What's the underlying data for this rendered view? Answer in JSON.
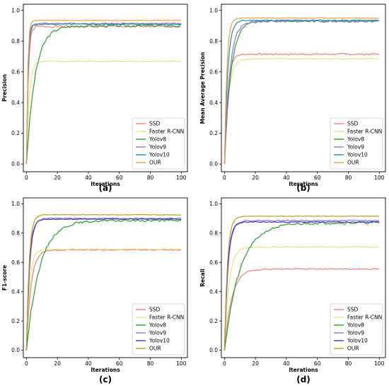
{
  "chart_data": [
    {
      "type": "line",
      "panel_label": "(a)",
      "xlabel": "Iterations",
      "ylabel": "Precision",
      "xlim": [
        -2,
        104
      ],
      "ylim": [
        -0.05,
        1.04
      ],
      "xticks": [
        0,
        20,
        40,
        60,
        80,
        100
      ],
      "yticks": [
        0.0,
        0.2,
        0.4,
        0.6,
        0.8,
        1.0
      ],
      "legend_position": "lower right",
      "series": [
        {
          "name": "SSD",
          "color": "#f08080",
          "curve": {
            "start": 0.0,
            "plateau": 0.895,
            "rate": 0.9,
            "noise": 0.01,
            "seed": 1
          }
        },
        {
          "name": "Faster R-CNN",
          "color": "#e3e389",
          "curve": {
            "start": 0.0,
            "plateau": 0.668,
            "rate": 0.6,
            "noise": 0.006,
            "seed": 2
          }
        },
        {
          "name": "Yolov8",
          "color": "#2e9e2e",
          "curve": {
            "start": 0.0,
            "plateau": 0.9,
            "rate": 0.18,
            "noise": 0.015,
            "seed": 3
          }
        },
        {
          "name": "Yolov9",
          "color": "#9370db",
          "curve": {
            "start": 0.0,
            "plateau": 0.915,
            "rate": 1.0,
            "noise": 0.006,
            "seed": 4
          }
        },
        {
          "name": "Yolov10",
          "color": "#1f8fa8",
          "curve": {
            "start": 0.0,
            "plateau": 0.91,
            "rate": 1.2,
            "noise": 0.005,
            "seed": 5
          }
        },
        {
          "name": "OUR",
          "color": "#f0a040",
          "curve": {
            "start": 0.0,
            "plateau": 0.935,
            "rate": 1.3,
            "noise": 0.003,
            "seed": 6
          }
        }
      ]
    },
    {
      "type": "line",
      "panel_label": "(b)",
      "xlabel": "Iterations",
      "ylabel": "Mean Average Precision",
      "xlim": [
        -2,
        104
      ],
      "ylim": [
        -0.05,
        1.04
      ],
      "xticks": [
        0,
        20,
        40,
        60,
        80,
        100
      ],
      "yticks": [
        0.0,
        0.2,
        0.4,
        0.6,
        0.8,
        1.0
      ],
      "legend_position": "lower right",
      "series": [
        {
          "name": "SSD",
          "color": "#f08080",
          "curve": {
            "start": 0.0,
            "plateau": 0.715,
            "rate": 0.5,
            "noise": 0.008,
            "seed": 7
          }
        },
        {
          "name": "Faster R-CNN",
          "color": "#e3e389",
          "curve": {
            "start": 0.0,
            "plateau": 0.685,
            "rate": 0.4,
            "noise": 0.005,
            "seed": 8
          }
        },
        {
          "name": "Yolov8",
          "color": "#2e9e2e",
          "curve": {
            "start": 0.0,
            "plateau": 0.93,
            "rate": 0.25,
            "noise": 0.012,
            "seed": 9
          }
        },
        {
          "name": "Yolov9",
          "color": "#9370db",
          "curve": {
            "start": 0.0,
            "plateau": 0.93,
            "rate": 0.3,
            "noise": 0.01,
            "seed": 10
          }
        },
        {
          "name": "Yolov10",
          "color": "#1f8fa8",
          "curve": {
            "start": 0.0,
            "plateau": 0.935,
            "rate": 0.5,
            "noise": 0.006,
            "seed": 11
          }
        },
        {
          "name": "OUR",
          "color": "#f0a040",
          "curve": {
            "start": 0.0,
            "plateau": 0.95,
            "rate": 0.7,
            "noise": 0.003,
            "seed": 12
          }
        }
      ]
    },
    {
      "type": "line",
      "panel_label": "(c)",
      "xlabel": "Iterations",
      "ylabel": "F1-score",
      "xlim": [
        -2,
        104
      ],
      "ylim": [
        -0.05,
        1.04
      ],
      "xticks": [
        0,
        20,
        40,
        60,
        80,
        100
      ],
      "yticks": [
        0.0,
        0.2,
        0.4,
        0.6,
        0.8,
        1.0
      ],
      "legend_position": "lower right",
      "series": [
        {
          "name": "SSD",
          "color": "#f08080",
          "curve": {
            "start": 0.0,
            "plateau": 0.685,
            "rate": 0.35,
            "noise": 0.006,
            "seed": 13
          }
        },
        {
          "name": "Faster R-CNN",
          "color": "#e3e389",
          "curve": {
            "start": 0.0,
            "plateau": 0.69,
            "rate": 0.5,
            "noise": 0.005,
            "seed": 14
          }
        },
        {
          "name": "Yolov8",
          "color": "#2e9e2e",
          "curve": {
            "start": 0.0,
            "plateau": 0.885,
            "rate": 0.12,
            "noise": 0.012,
            "seed": 15
          }
        },
        {
          "name": "Yolov9",
          "color": "#9370db",
          "curve": {
            "start": 0.0,
            "plateau": 0.9,
            "rate": 0.5,
            "noise": 0.006,
            "seed": 16
          }
        },
        {
          "name": "Yolov10",
          "color": "#3a3ab8",
          "curve": {
            "start": 0.0,
            "plateau": 0.895,
            "rate": 0.55,
            "noise": 0.005,
            "seed": 17
          }
        },
        {
          "name": "OUR",
          "color": "#b8a020",
          "curve": {
            "start": 0.0,
            "plateau": 0.925,
            "rate": 0.6,
            "noise": 0.003,
            "seed": 18
          }
        }
      ]
    },
    {
      "type": "line",
      "panel_label": "(d)",
      "xlabel": "Iterations",
      "ylabel": "Recall",
      "xlim": [
        -2,
        104
      ],
      "ylim": [
        -0.05,
        1.04
      ],
      "xticks": [
        0,
        20,
        40,
        60,
        80,
        100
      ],
      "yticks": [
        0.0,
        0.2,
        0.4,
        0.6,
        0.8,
        1.0
      ],
      "legend_position": "lower right",
      "series": [
        {
          "name": "SSD",
          "color": "#f08080",
          "curve": {
            "start": 0.0,
            "plateau": 0.555,
            "rate": 0.22,
            "noise": 0.006,
            "seed": 19
          }
        },
        {
          "name": "Faster R-CNN",
          "color": "#e3e389",
          "curve": {
            "start": 0.0,
            "plateau": 0.705,
            "rate": 0.35,
            "noise": 0.005,
            "seed": 20
          }
        },
        {
          "name": "Yolov8",
          "color": "#2e9e2e",
          "curve": {
            "start": 0.0,
            "plateau": 0.87,
            "rate": 0.1,
            "noise": 0.013,
            "seed": 21
          }
        },
        {
          "name": "Yolov9",
          "color": "#9370db",
          "curve": {
            "start": 0.0,
            "plateau": 0.885,
            "rate": 0.45,
            "noise": 0.006,
            "seed": 22
          }
        },
        {
          "name": "Yolov10",
          "color": "#3a3ab8",
          "curve": {
            "start": 0.0,
            "plateau": 0.875,
            "rate": 0.5,
            "noise": 0.005,
            "seed": 23
          }
        },
        {
          "name": "OUR",
          "color": "#b8a020",
          "curve": {
            "start": 0.0,
            "plateau": 0.915,
            "rate": 0.55,
            "noise": 0.003,
            "seed": 24
          }
        }
      ]
    }
  ]
}
